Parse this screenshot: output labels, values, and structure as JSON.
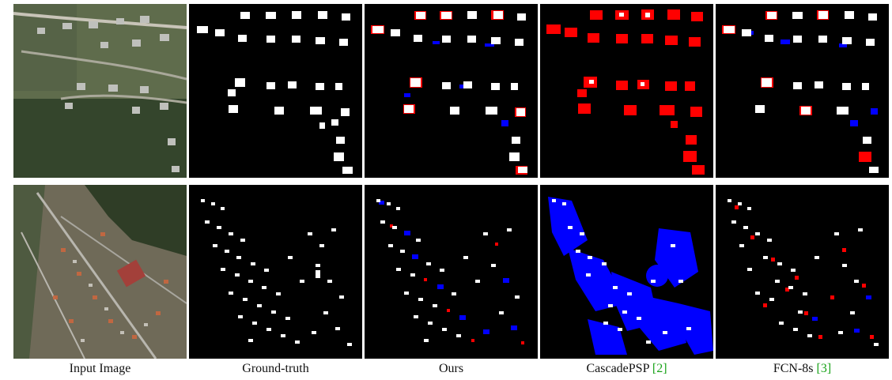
{
  "captions": {
    "input": "Input Image",
    "gt": "Ground-truth",
    "ours": "Ours",
    "cascade": "CascadePSP",
    "cascade_ref": "[2]",
    "fcn": "FCN-8s",
    "fcn_ref": "[3]"
  },
  "colors": {
    "background": "#000000",
    "building": "#ffffff",
    "false_negative": "#ff0000",
    "false_positive": "#0000ff",
    "citation": "#1aa31a"
  }
}
